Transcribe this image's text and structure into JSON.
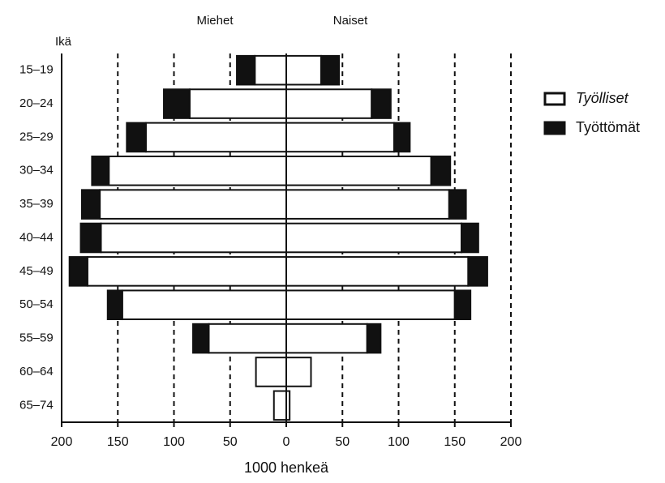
{
  "chart_data": {
    "type": "pyramid",
    "left_label": "Miehet",
    "right_label": "Naiset",
    "y_label": "Ikä",
    "x_label": "1000 henkeä",
    "categories": [
      "15–19",
      "20–24",
      "25–29",
      "30–34",
      "35–39",
      "40–44",
      "45–49",
      "50–54",
      "55–59",
      "60–64",
      "65–74"
    ],
    "series": [
      {
        "name": "Työlliset",
        "color": "#ffffff",
        "left": [
          28,
          86,
          125,
          158,
          166,
          165,
          177,
          146,
          69,
          27,
          11
        ],
        "right": [
          31,
          76,
          96,
          129,
          145,
          156,
          162,
          150,
          72,
          22,
          3
        ]
      },
      {
        "name": "Työttömät",
        "color": "#111111",
        "left": [
          16,
          23,
          17,
          15,
          16,
          18,
          16,
          13,
          14,
          0,
          0
        ],
        "right": [
          16,
          17,
          14,
          17,
          15,
          15,
          17,
          14,
          12,
          0,
          0
        ]
      }
    ],
    "xlim": [
      0,
      200
    ],
    "xticks": [
      0,
      50,
      100,
      150,
      200
    ],
    "grid": true
  }
}
